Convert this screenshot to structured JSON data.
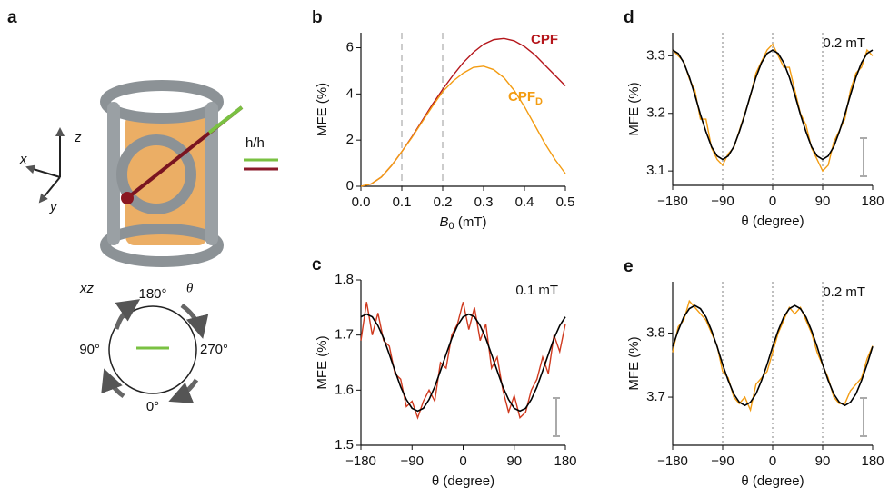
{
  "panel_a": {
    "label": "a",
    "axis_x": "x",
    "axis_y": "y",
    "axis_z": "z",
    "pol": "h/h",
    "plane": "xz",
    "angle": "θ",
    "deg180": "180°",
    "deg90": "90°",
    "deg270": "270°",
    "deg0": "0°"
  },
  "chart_data": [
    {
      "type": "line",
      "label": "b",
      "ylabel": "MFE (%)",
      "xlabel": "B",
      "xlabel_subscript": "0",
      "xlabel_unit": " (mT)",
      "x": [
        0,
        0.025,
        0.05,
        0.075,
        0.1,
        0.125,
        0.15,
        0.175,
        0.2,
        0.225,
        0.25,
        0.275,
        0.3,
        0.325,
        0.35,
        0.375,
        0.4,
        0.425,
        0.45,
        0.475,
        0.5
      ],
      "series": [
        {
          "name": "CPF",
          "color": "#b5161b",
          "values": [
            0,
            0.1,
            0.4,
            0.9,
            1.5,
            2.15,
            2.85,
            3.55,
            4.2,
            4.8,
            5.35,
            5.8,
            6.15,
            6.35,
            6.4,
            6.3,
            6.05,
            5.7,
            5.25,
            4.8,
            4.35
          ]
        },
        {
          "name": "CPF",
          "name_subscript": "D",
          "color": "#f39c12",
          "values": [
            0,
            0.1,
            0.4,
            0.9,
            1.5,
            2.12,
            2.8,
            3.47,
            4.1,
            4.55,
            4.9,
            5.15,
            5.2,
            5.05,
            4.7,
            4.15,
            3.45,
            2.65,
            1.85,
            1.15,
            0.55
          ]
        }
      ],
      "xlim": [
        0,
        0.5
      ],
      "ylim": [
        0,
        6.65
      ],
      "xticks": [
        {
          "value": 0,
          "label": "0.0"
        },
        0.1,
        0.2,
        0.3,
        0.4,
        0.5
      ],
      "yticks": [
        0,
        2,
        4,
        6
      ],
      "vlines": [
        0.1,
        0.2
      ],
      "vline_color": "#bbbbbb"
    },
    {
      "type": "line",
      "label": "c",
      "ylabel": "MFE (%)",
      "xlabel": "θ (degree)",
      "annotation": "0.1 mT",
      "x": [
        -180,
        -170,
        -160,
        -150,
        -140,
        -130,
        -120,
        -110,
        -100,
        -90,
        -80,
        -70,
        -60,
        -50,
        -40,
        -30,
        -20,
        -10,
        0,
        10,
        20,
        30,
        40,
        50,
        60,
        70,
        80,
        90,
        100,
        110,
        120,
        130,
        140,
        150,
        160,
        170,
        180
      ],
      "series": [
        {
          "color": "#d03a1f",
          "values": [
            1.69,
            1.76,
            1.7,
            1.74,
            1.69,
            1.68,
            1.63,
            1.62,
            1.57,
            1.58,
            1.55,
            1.58,
            1.6,
            1.58,
            1.65,
            1.64,
            1.7,
            1.72,
            1.76,
            1.71,
            1.75,
            1.69,
            1.72,
            1.64,
            1.66,
            1.6,
            1.56,
            1.59,
            1.55,
            1.56,
            1.6,
            1.62,
            1.66,
            1.63,
            1.7,
            1.67,
            1.72
          ]
        },
        {
          "color": "#000000",
          "values": [
            1.733,
            1.738,
            1.733,
            1.717,
            1.694,
            1.665,
            1.635,
            1.606,
            1.583,
            1.567,
            1.562,
            1.567,
            1.583,
            1.606,
            1.635,
            1.665,
            1.694,
            1.717,
            1.733,
            1.738,
            1.733,
            1.717,
            1.694,
            1.665,
            1.635,
            1.606,
            1.583,
            1.567,
            1.562,
            1.567,
            1.583,
            1.606,
            1.635,
            1.665,
            1.694,
            1.717,
            1.733
          ]
        }
      ],
      "xlim": [
        -180,
        180
      ],
      "ylim": [
        1.5,
        1.8
      ],
      "xticks": [
        {
          "value": -180,
          "label": "−180"
        },
        {
          "value": -90,
          "label": "−90"
        },
        0,
        90,
        180
      ],
      "yticks": [
        1.5,
        1.6,
        1.7,
        1.8
      ]
    },
    {
      "type": "line",
      "label": "d",
      "ylabel": "MFE (%)",
      "xlabel": "θ (degree)",
      "annotation": "0.2 mT",
      "x": [
        -180,
        -170,
        -160,
        -150,
        -140,
        -130,
        -120,
        -110,
        -100,
        -90,
        -80,
        -70,
        -60,
        -50,
        -40,
        -30,
        -20,
        -10,
        0,
        10,
        20,
        30,
        40,
        50,
        60,
        70,
        80,
        90,
        100,
        110,
        120,
        130,
        140,
        150,
        160,
        170,
        180
      ],
      "series": [
        {
          "color": "#f39c12",
          "values": [
            3.31,
            3.3,
            3.29,
            3.26,
            3.24,
            3.19,
            3.19,
            3.14,
            3.12,
            3.11,
            3.13,
            3.14,
            3.17,
            3.2,
            3.23,
            3.27,
            3.29,
            3.31,
            3.32,
            3.3,
            3.28,
            3.28,
            3.24,
            3.2,
            3.18,
            3.14,
            3.12,
            3.1,
            3.11,
            3.15,
            3.17,
            3.19,
            3.24,
            3.27,
            3.28,
            3.31,
            3.3
          ]
        },
        {
          "color": "#000000",
          "values": [
            3.31,
            3.304,
            3.288,
            3.263,
            3.232,
            3.198,
            3.168,
            3.142,
            3.126,
            3.12,
            3.126,
            3.142,
            3.168,
            3.198,
            3.232,
            3.263,
            3.288,
            3.304,
            3.31,
            3.304,
            3.288,
            3.263,
            3.232,
            3.198,
            3.168,
            3.142,
            3.126,
            3.12,
            3.126,
            3.142,
            3.168,
            3.198,
            3.232,
            3.263,
            3.288,
            3.304,
            3.31
          ]
        }
      ],
      "xlim": [
        -180,
        180
      ],
      "ylim": [
        3.075,
        3.34
      ],
      "xticks": [
        {
          "value": -180,
          "label": "−180"
        },
        {
          "value": -90,
          "label": "−90"
        },
        0,
        90,
        180
      ],
      "yticks": [
        3.1,
        3.2,
        3.3
      ],
      "vlines": [
        -90,
        0,
        90
      ],
      "vline_color": "#aaaaaa"
    },
    {
      "type": "line",
      "label": "e",
      "ylabel": "MFE (%)",
      "xlabel": "θ (degree)",
      "annotation": "0.2 mT",
      "x": [
        -180,
        -170,
        -160,
        -150,
        -140,
        -130,
        -120,
        -110,
        -100,
        -90,
        -80,
        -70,
        -60,
        -50,
        -40,
        -30,
        -20,
        -10,
        0,
        10,
        20,
        30,
        40,
        50,
        60,
        70,
        80,
        90,
        100,
        110,
        120,
        130,
        140,
        150,
        160,
        170,
        180
      ],
      "series": [
        {
          "color": "#f39c12",
          "values": [
            3.77,
            3.81,
            3.82,
            3.85,
            3.84,
            3.83,
            3.82,
            3.8,
            3.78,
            3.74,
            3.73,
            3.7,
            3.69,
            3.7,
            3.68,
            3.72,
            3.73,
            3.74,
            3.77,
            3.8,
            3.82,
            3.84,
            3.83,
            3.84,
            3.82,
            3.8,
            3.77,
            3.75,
            3.73,
            3.7,
            3.69,
            3.69,
            3.71,
            3.72,
            3.73,
            3.76,
            3.78
          ]
        },
        {
          "color": "#000000",
          "values": [
            3.779,
            3.804,
            3.825,
            3.838,
            3.843,
            3.838,
            3.825,
            3.804,
            3.779,
            3.751,
            3.726,
            3.705,
            3.692,
            3.687,
            3.692,
            3.705,
            3.726,
            3.751,
            3.779,
            3.804,
            3.825,
            3.838,
            3.843,
            3.838,
            3.825,
            3.804,
            3.779,
            3.751,
            3.726,
            3.705,
            3.692,
            3.687,
            3.692,
            3.705,
            3.726,
            3.751,
            3.779
          ]
        }
      ],
      "xlim": [
        -180,
        180
      ],
      "ylim": [
        3.625,
        3.88
      ],
      "xticks": [
        {
          "value": -180,
          "label": "−180"
        },
        {
          "value": -90,
          "label": "−90"
        },
        0,
        90,
        180
      ],
      "yticks": [
        3.7,
        3.8
      ],
      "vlines": [
        -90,
        0,
        90
      ],
      "vline_color": "#aaaaaa"
    }
  ]
}
